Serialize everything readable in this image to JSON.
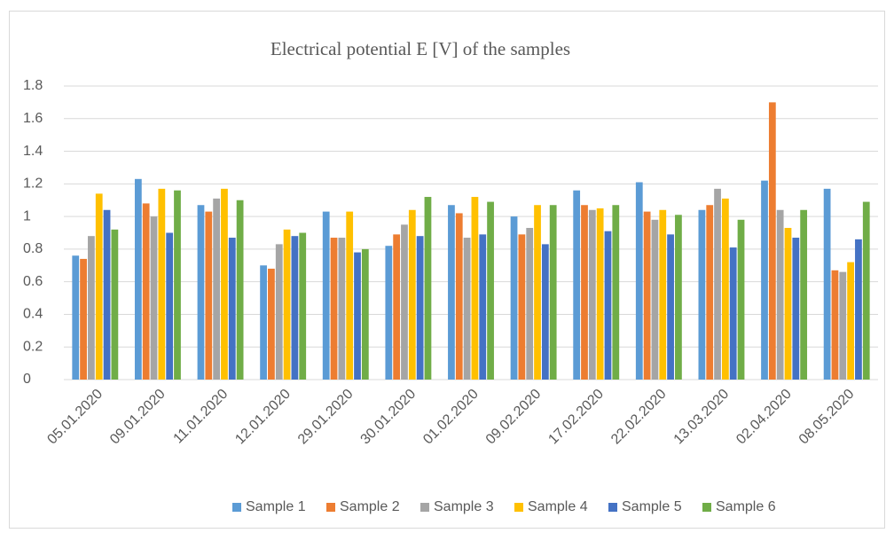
{
  "chart_data": {
    "type": "bar",
    "title": "Electrical potential E [V] of the samples",
    "categories": [
      "05.01.2020",
      "09.01.2020",
      "11.01.2020",
      "12.01.2020",
      "29.01.2020",
      "30.01.2020",
      "01.02.2020",
      "09.02.2020",
      "17.02.2020",
      "22.02.2020",
      "13.03.2020",
      "02.04.2020",
      "08.05.2020"
    ],
    "series": [
      {
        "name": "Sample 1",
        "color": "#5b9bd5",
        "values": [
          0.76,
          1.23,
          1.07,
          0.7,
          1.03,
          0.82,
          1.07,
          1.0,
          1.16,
          1.21,
          1.04,
          1.22,
          1.17
        ]
      },
      {
        "name": "Sample 2",
        "color": "#ed7d31",
        "values": [
          0.74,
          1.08,
          1.03,
          0.68,
          0.87,
          0.89,
          1.02,
          0.89,
          1.07,
          1.03,
          1.07,
          1.7,
          0.67
        ]
      },
      {
        "name": "Sample 3",
        "color": "#a5a5a5",
        "values": [
          0.88,
          1.0,
          1.11,
          0.83,
          0.87,
          0.95,
          0.87,
          0.93,
          1.04,
          0.98,
          1.17,
          1.04,
          0.66
        ]
      },
      {
        "name": "Sample 4",
        "color": "#ffc000",
        "values": [
          1.14,
          1.17,
          1.17,
          0.92,
          1.03,
          1.04,
          1.12,
          1.07,
          1.05,
          1.04,
          1.11,
          0.93,
          0.72
        ]
      },
      {
        "name": "Sample 5",
        "color": "#4472c4",
        "values": [
          1.04,
          0.9,
          0.87,
          0.88,
          0.78,
          0.88,
          0.89,
          0.83,
          0.91,
          0.89,
          0.81,
          0.87,
          0.86
        ]
      },
      {
        "name": "Sample 6",
        "color": "#70ad47",
        "values": [
          0.92,
          1.16,
          1.1,
          0.9,
          0.8,
          1.12,
          1.09,
          1.07,
          1.07,
          1.01,
          0.98,
          1.04,
          1.09
        ]
      }
    ],
    "ylim": [
      0,
      1.8
    ],
    "yticks": [
      0,
      0.2,
      0.4,
      0.6,
      0.8,
      1,
      1.2,
      1.4,
      1.6,
      1.8
    ],
    "grid": true,
    "legend": "bottom"
  }
}
